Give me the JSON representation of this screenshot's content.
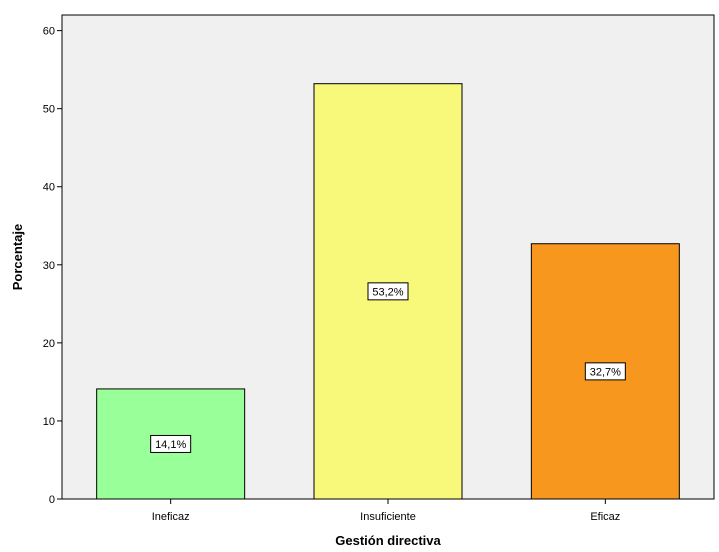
{
  "chart_data": {
    "type": "bar",
    "categories": [
      "Ineficaz",
      "Insuficiente",
      "Eficaz"
    ],
    "values": [
      14.1,
      53.2,
      32.7
    ],
    "data_labels": [
      "14,1%",
      "53,2%",
      "32,7%"
    ],
    "colors": [
      "#99ff99",
      "#f8f87a",
      "#f7971e"
    ],
    "xlabel": "Gestión directiva",
    "ylabel": "Porcentaje",
    "ylim": [
      0,
      62
    ],
    "yticks": [
      0,
      10,
      20,
      30,
      40,
      50,
      60
    ],
    "ytick_labels": [
      "0",
      "10",
      "20",
      "30",
      "40",
      "50",
      "60"
    ],
    "grid": false,
    "plot_background": "#f0f0f0"
  }
}
